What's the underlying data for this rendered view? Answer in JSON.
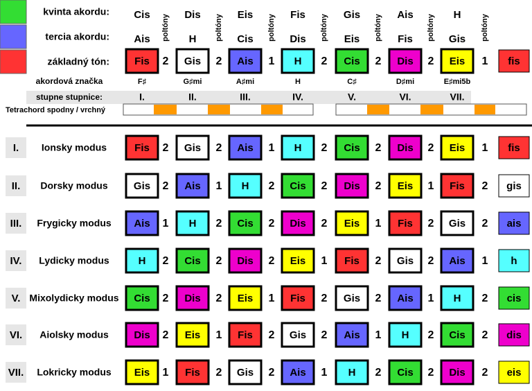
{
  "legend": [
    {
      "label": "kvinta akordu:",
      "color": "#33dd33"
    },
    {
      "label": "tercia akordu:",
      "color": "#6666ff"
    },
    {
      "label": "základný tón:",
      "color": "#ff3333"
    }
  ],
  "colors": {
    "fis": {
      "fill": "#ff3333",
      "text": "#ffffff"
    },
    "gis": {
      "fill": "#ffffff",
      "text": "#000000"
    },
    "ais": {
      "fill": "#6666ff",
      "text": "#ffffff"
    },
    "h": {
      "fill": "#55ffff",
      "text": "#000000"
    },
    "cis": {
      "fill": "#33dd33",
      "text": "#000000"
    },
    "dis": {
      "fill": "#ee00cc",
      "text": "#000000"
    },
    "eis": {
      "fill": "#ffff00",
      "text": "#000000"
    }
  },
  "fifths": [
    "Cis",
    "Dis",
    "Eis",
    "Fis",
    "Gis",
    "Ais",
    "H"
  ],
  "thirds": [
    "Ais",
    "H",
    "Cis",
    "Dis",
    "Eis",
    "Fis",
    "Gis"
  ],
  "semitones_label": "poltóny",
  "roots": [
    "Fis",
    "Gis",
    "Ais",
    "H",
    "Cis",
    "Dis",
    "Eis",
    "fis"
  ],
  "root_intervals": [
    2,
    2,
    1,
    2,
    2,
    2,
    1
  ],
  "chord_symbols_label": "akordová značka",
  "chord_symbols": [
    "F♯",
    "G♯mi",
    "A♯mi",
    "H",
    "C♯",
    "D♯mi",
    "E♯mi5b"
  ],
  "degrees_label": "stupne stupnice:",
  "degrees": [
    "I.",
    "II.",
    "III.",
    "IV.",
    "V.",
    "VI.",
    "VII."
  ],
  "tetrachord_label": "Tetrachord spodny / vrchný",
  "modes": [
    {
      "numeral": "I.",
      "name": "Ionsky modus",
      "notes": [
        "Fis",
        "Gis",
        "Ais",
        "H",
        "Cis",
        "Dis",
        "Eis",
        "fis"
      ],
      "intervals": [
        2,
        2,
        1,
        2,
        2,
        2,
        1
      ]
    },
    {
      "numeral": "II.",
      "name": "Dorsky modus",
      "notes": [
        "Gis",
        "Ais",
        "H",
        "Cis",
        "Dis",
        "Eis",
        "Fis",
        "gis"
      ],
      "intervals": [
        2,
        1,
        2,
        2,
        2,
        1,
        2
      ]
    },
    {
      "numeral": "III.",
      "name": "Frygicky modus",
      "notes": [
        "Ais",
        "H",
        "Cis",
        "Dis",
        "Eis",
        "Fis",
        "Gis",
        "ais"
      ],
      "intervals": [
        1,
        2,
        2,
        2,
        1,
        2,
        2
      ]
    },
    {
      "numeral": "IV.",
      "name": "Lydicky modus",
      "notes": [
        "H",
        "Cis",
        "Dis",
        "Eis",
        "Fis",
        "Gis",
        "Ais",
        "h"
      ],
      "intervals": [
        2,
        2,
        2,
        1,
        2,
        2,
        1
      ]
    },
    {
      "numeral": "V.",
      "name": "Mixolydicky modus",
      "notes": [
        "Cis",
        "Dis",
        "Eis",
        "Fis",
        "Gis",
        "Ais",
        "H",
        "cis"
      ],
      "intervals": [
        2,
        2,
        1,
        2,
        2,
        1,
        2
      ]
    },
    {
      "numeral": "VI.",
      "name": "Aiolsky modus",
      "notes": [
        "Dis",
        "Eis",
        "Fis",
        "Gis",
        "Ais",
        "H",
        "Cis",
        "dis"
      ],
      "intervals": [
        2,
        1,
        2,
        2,
        1,
        2,
        2
      ]
    },
    {
      "numeral": "VII.",
      "name": "Lokricky modus",
      "notes": [
        "Eis",
        "Fis",
        "Gis",
        "Ais",
        "H",
        "Cis",
        "Dis",
        "eis"
      ],
      "intervals": [
        1,
        2,
        2,
        1,
        2,
        2,
        2
      ]
    }
  ]
}
